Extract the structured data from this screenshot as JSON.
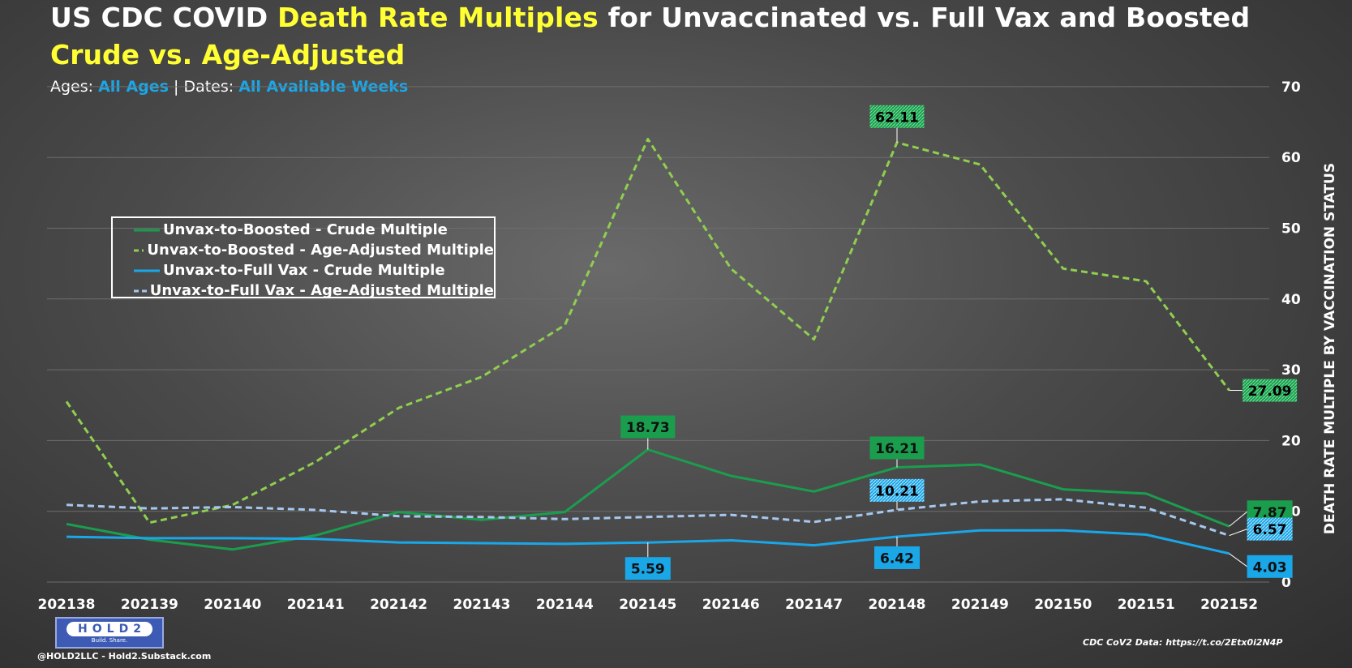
{
  "header": {
    "title_part1": "US CDC COVID ",
    "title_highlight": "Death Rate Multiples",
    "title_part2": " for Unvaccinated vs. Full Vax and Boosted",
    "title_line2": "Crude vs. Age-Adjusted",
    "subtitle_ages_label": "Ages: ",
    "subtitle_ages_value": "All Ages",
    "subtitle_sep": " | ",
    "subtitle_dates_label": "Dates: ",
    "subtitle_dates_value": "All Available Weeks"
  },
  "footer": {
    "logo_text": "HOLD2",
    "logo_tagline": "Build. Share.",
    "credit": "@HOLD2LLC - Hold2.Substack.com",
    "source": "CDC CoV2 Data: https://t.co/2Etx0i2N4P"
  },
  "colors": {
    "crude_boosted": "#1a9e4e",
    "adj_boosted": "#8fcf4f",
    "crude_full": "#1aa7e8",
    "adj_full": "#a6c8ee",
    "label_green": "#1a9e4e",
    "label_blue": "#1aa7e8",
    "grid": "#6d6d6d",
    "text": "#ffffff"
  },
  "chart_data": {
    "type": "line",
    "ylabel": "DEATH RATE MULTIPLE BY VACCINATION STATUS",
    "ylim": [
      0,
      70
    ],
    "yticks": [
      0,
      10,
      20,
      30,
      40,
      50,
      60,
      70
    ],
    "y_axis_side": "right",
    "grid": true,
    "legend_position": "upper-left",
    "categories": [
      "202138",
      "202139",
      "202140",
      "202141",
      "202142",
      "202143",
      "202144",
      "202145",
      "202146",
      "202147",
      "202148",
      "202149",
      "202150",
      "202151",
      "202152"
    ],
    "series": [
      {
        "name": "Unvax-to-Boosted - Crude Multiple",
        "style": "solid",
        "color": "#1a9e4e",
        "values": [
          8.2,
          6.0,
          4.6,
          6.6,
          9.9,
          8.8,
          9.9,
          18.73,
          15.0,
          12.8,
          16.21,
          16.6,
          13.1,
          12.5,
          7.87
        ]
      },
      {
        "name": "Unvax-to-Boosted - Age-Adjusted Multiple",
        "style": "dashed",
        "color": "#8fcf4f",
        "values": [
          25.5,
          8.4,
          10.9,
          17.0,
          24.6,
          29.0,
          36.3,
          62.6,
          44.3,
          34.3,
          62.11,
          59.0,
          44.3,
          42.5,
          27.09
        ]
      },
      {
        "name": "Unvax-to-Full Vax - Crude Multiple",
        "style": "solid",
        "color": "#1aa7e8",
        "values": [
          6.4,
          6.2,
          6.2,
          6.1,
          5.6,
          5.5,
          5.4,
          5.59,
          5.9,
          5.2,
          6.42,
          7.3,
          7.3,
          6.7,
          4.03
        ]
      },
      {
        "name": "Unvax-to-Full Vax - Age-Adjusted Multiple",
        "style": "dashed",
        "color": "#a6c8ee",
        "values": [
          10.9,
          10.4,
          10.6,
          10.2,
          9.3,
          9.2,
          8.9,
          9.2,
          9.5,
          8.5,
          10.21,
          11.4,
          11.7,
          10.5,
          6.57
        ]
      }
    ],
    "annotations": [
      {
        "series": 1,
        "index": 10,
        "text": "62.11",
        "style": "green-hatch"
      },
      {
        "series": 1,
        "index": 14,
        "text": "27.09",
        "style": "green-hatch"
      },
      {
        "series": 0,
        "index": 7,
        "text": "18.73",
        "style": "green"
      },
      {
        "series": 0,
        "index": 10,
        "text": "16.21",
        "style": "green"
      },
      {
        "series": 0,
        "index": 14,
        "text": "7.87",
        "style": "green"
      },
      {
        "series": 3,
        "index": 10,
        "text": "10.21",
        "style": "blue-hatch"
      },
      {
        "series": 3,
        "index": 14,
        "text": "6.57",
        "style": "blue-hatch"
      },
      {
        "series": 2,
        "index": 7,
        "text": "5.59",
        "style": "blue"
      },
      {
        "series": 2,
        "index": 10,
        "text": "6.42",
        "style": "blue"
      },
      {
        "series": 2,
        "index": 14,
        "text": "4.03",
        "style": "blue"
      }
    ]
  }
}
